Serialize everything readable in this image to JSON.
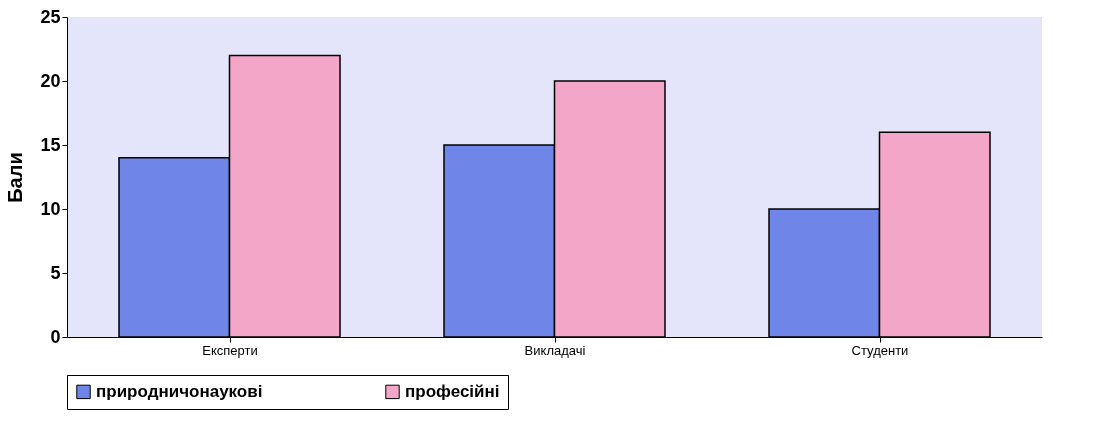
{
  "chart_data": {
    "type": "bar",
    "ylabel": "Бали",
    "categories": [
      "Експерти",
      "Викладачі",
      "Студенти"
    ],
    "series": [
      {
        "name": "природничонаукові",
        "color": "#6f86e8",
        "values": [
          14,
          15,
          10
        ]
      },
      {
        "name": "професійні",
        "color": "#f4a6c8",
        "values": [
          22,
          20,
          16
        ]
      }
    ],
    "ylim": [
      0,
      25
    ],
    "yticks": [
      0,
      5,
      10,
      15,
      20,
      25
    ],
    "grid": false,
    "legend": "bottom"
  }
}
